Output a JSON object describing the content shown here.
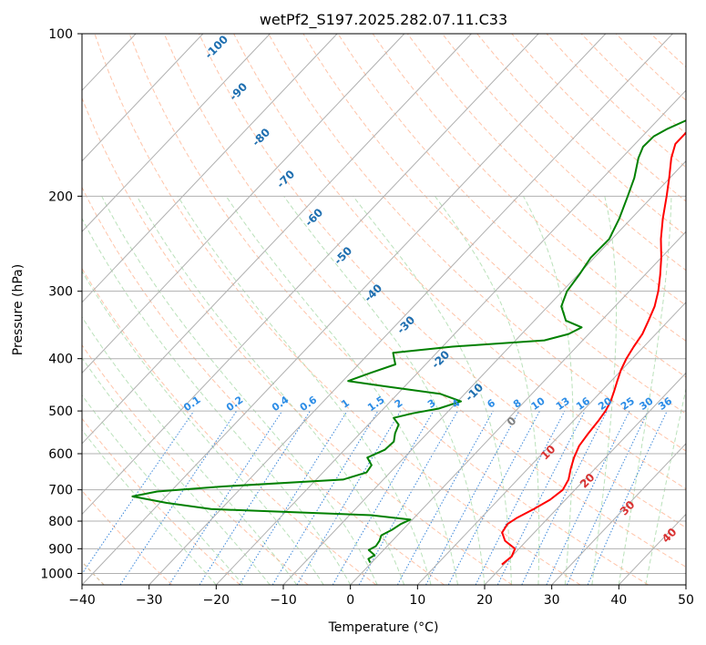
{
  "chart_data": {
    "type": "line",
    "title": "wetPf2_S197.2025.282.07.11.C33",
    "xlabel": "Temperature (°C)",
    "ylabel": "Pressure (hPa)",
    "xlim": [
      -40,
      50
    ],
    "ylim": [
      1050,
      100
    ],
    "y_scale": "log",
    "x_ticks": [
      -40,
      -30,
      -20,
      -10,
      0,
      10,
      20,
      30,
      40,
      50
    ],
    "x_tick_labels": [
      "−40",
      "−30",
      "−20",
      "−10",
      "0",
      "10",
      "20",
      "30",
      "40",
      "50"
    ],
    "y_ticks": [
      1000,
      900,
      800,
      700,
      600,
      500,
      400,
      300,
      200,
      100
    ],
    "y_tick_labels": [
      "1000",
      "900",
      "800",
      "700",
      "600",
      "500",
      "400",
      "300",
      "200",
      "100"
    ],
    "grid": true,
    "skew_plot": true,
    "series": [
      {
        "color": "#ff0000",
        "points": [
          [
            963,
            19.7
          ],
          [
            930,
            20.0
          ],
          [
            900,
            19.4
          ],
          [
            870,
            16.8
          ],
          [
            840,
            15.2
          ],
          [
            810,
            14.8
          ],
          [
            790,
            15.3
          ],
          [
            760,
            16.6
          ],
          [
            730,
            17.7
          ],
          [
            700,
            18.2
          ],
          [
            670,
            17.6
          ],
          [
            640,
            16.4
          ],
          [
            610,
            15.3
          ],
          [
            580,
            14.4
          ],
          [
            550,
            14.0
          ],
          [
            520,
            13.7
          ],
          [
            500,
            13.4
          ],
          [
            480,
            12.8
          ],
          [
            460,
            11.9
          ],
          [
            440,
            10.9
          ],
          [
            420,
            9.9
          ],
          [
            400,
            9.1
          ],
          [
            380,
            8.5
          ],
          [
            360,
            8.0
          ],
          [
            340,
            7.0
          ],
          [
            320,
            5.9
          ],
          [
            300,
            4.3
          ],
          [
            280,
            2.3
          ],
          [
            260,
            0.0
          ],
          [
            240,
            -2.7
          ],
          [
            220,
            -5.3
          ],
          [
            200,
            -7.9
          ],
          [
            185,
            -10.1
          ],
          [
            170,
            -12.6
          ],
          [
            160,
            -14.0
          ],
          [
            152,
            -14.0
          ],
          [
            147,
            -11.1
          ],
          [
            144,
            -5.7
          ],
          [
            140,
            -3.0
          ],
          [
            130,
            -2.8
          ],
          [
            120,
            -3.4
          ],
          [
            110,
            -5.4
          ],
          [
            100,
            -7.0
          ]
        ]
      },
      {
        "color": "#008000",
        "points": [
          [
            955,
            -0.2
          ],
          [
            940,
            -1.0
          ],
          [
            925,
            -0.6
          ],
          [
            905,
            -2.2
          ],
          [
            890,
            -1.7
          ],
          [
            870,
            -1.9
          ],
          [
            850,
            -2.4
          ],
          [
            830,
            -1.6
          ],
          [
            810,
            -1.1
          ],
          [
            795,
            -0.3
          ],
          [
            780,
            -6.8
          ],
          [
            760,
            -31.5
          ],
          [
            740,
            -39.0
          ],
          [
            720,
            -45.0
          ],
          [
            705,
            -42.0
          ],
          [
            690,
            -33.0
          ],
          [
            670,
            -16.0
          ],
          [
            650,
            -13.5
          ],
          [
            630,
            -13.8
          ],
          [
            610,
            -15.5
          ],
          [
            590,
            -14.0
          ],
          [
            570,
            -13.8
          ],
          [
            550,
            -14.8
          ],
          [
            530,
            -15.5
          ],
          [
            515,
            -17.2
          ],
          [
            505,
            -15.0
          ],
          [
            495,
            -11.8
          ],
          [
            480,
            -9.5
          ],
          [
            465,
            -13.6
          ],
          [
            450,
            -23.0
          ],
          [
            440,
            -29.2
          ],
          [
            425,
            -27.0
          ],
          [
            410,
            -24.5
          ],
          [
            400,
            -25.5
          ],
          [
            390,
            -26.5
          ],
          [
            380,
            -18.5
          ],
          [
            370,
            -5.7
          ],
          [
            360,
            -3.0
          ],
          [
            350,
            -2.0
          ],
          [
            340,
            -5.3
          ],
          [
            320,
            -8.0
          ],
          [
            300,
            -9.3
          ],
          [
            280,
            -9.8
          ],
          [
            260,
            -10.5
          ],
          [
            240,
            -10.4
          ],
          [
            220,
            -11.8
          ],
          [
            200,
            -13.7
          ],
          [
            185,
            -15.3
          ],
          [
            170,
            -17.5
          ],
          [
            162,
            -18.4
          ],
          [
            155,
            -18.3
          ],
          [
            150,
            -17.3
          ],
          [
            145,
            -15.8
          ],
          [
            140,
            -13.5
          ],
          [
            133,
            -11.1
          ],
          [
            125,
            -11.8
          ],
          [
            118,
            -12.0
          ],
          [
            110,
            -10.8
          ],
          [
            103,
            -8.3
          ],
          [
            100,
            -7.0
          ]
        ]
      }
    ],
    "dry_adiabat_labels": [
      "-100",
      "-90",
      "-80",
      "-70",
      "-60",
      "-50",
      "-40",
      "-30",
      "-20",
      "-10",
      "0",
      "10",
      "20",
      "30",
      "40"
    ],
    "mixing_ratio_labels": [
      "0.1",
      "0.2",
      "0.4",
      "0.6",
      "1",
      "1.5",
      "2",
      "3",
      "4",
      "6",
      "8",
      "10",
      "13",
      "16",
      "20",
      "25",
      "30",
      "36"
    ]
  }
}
